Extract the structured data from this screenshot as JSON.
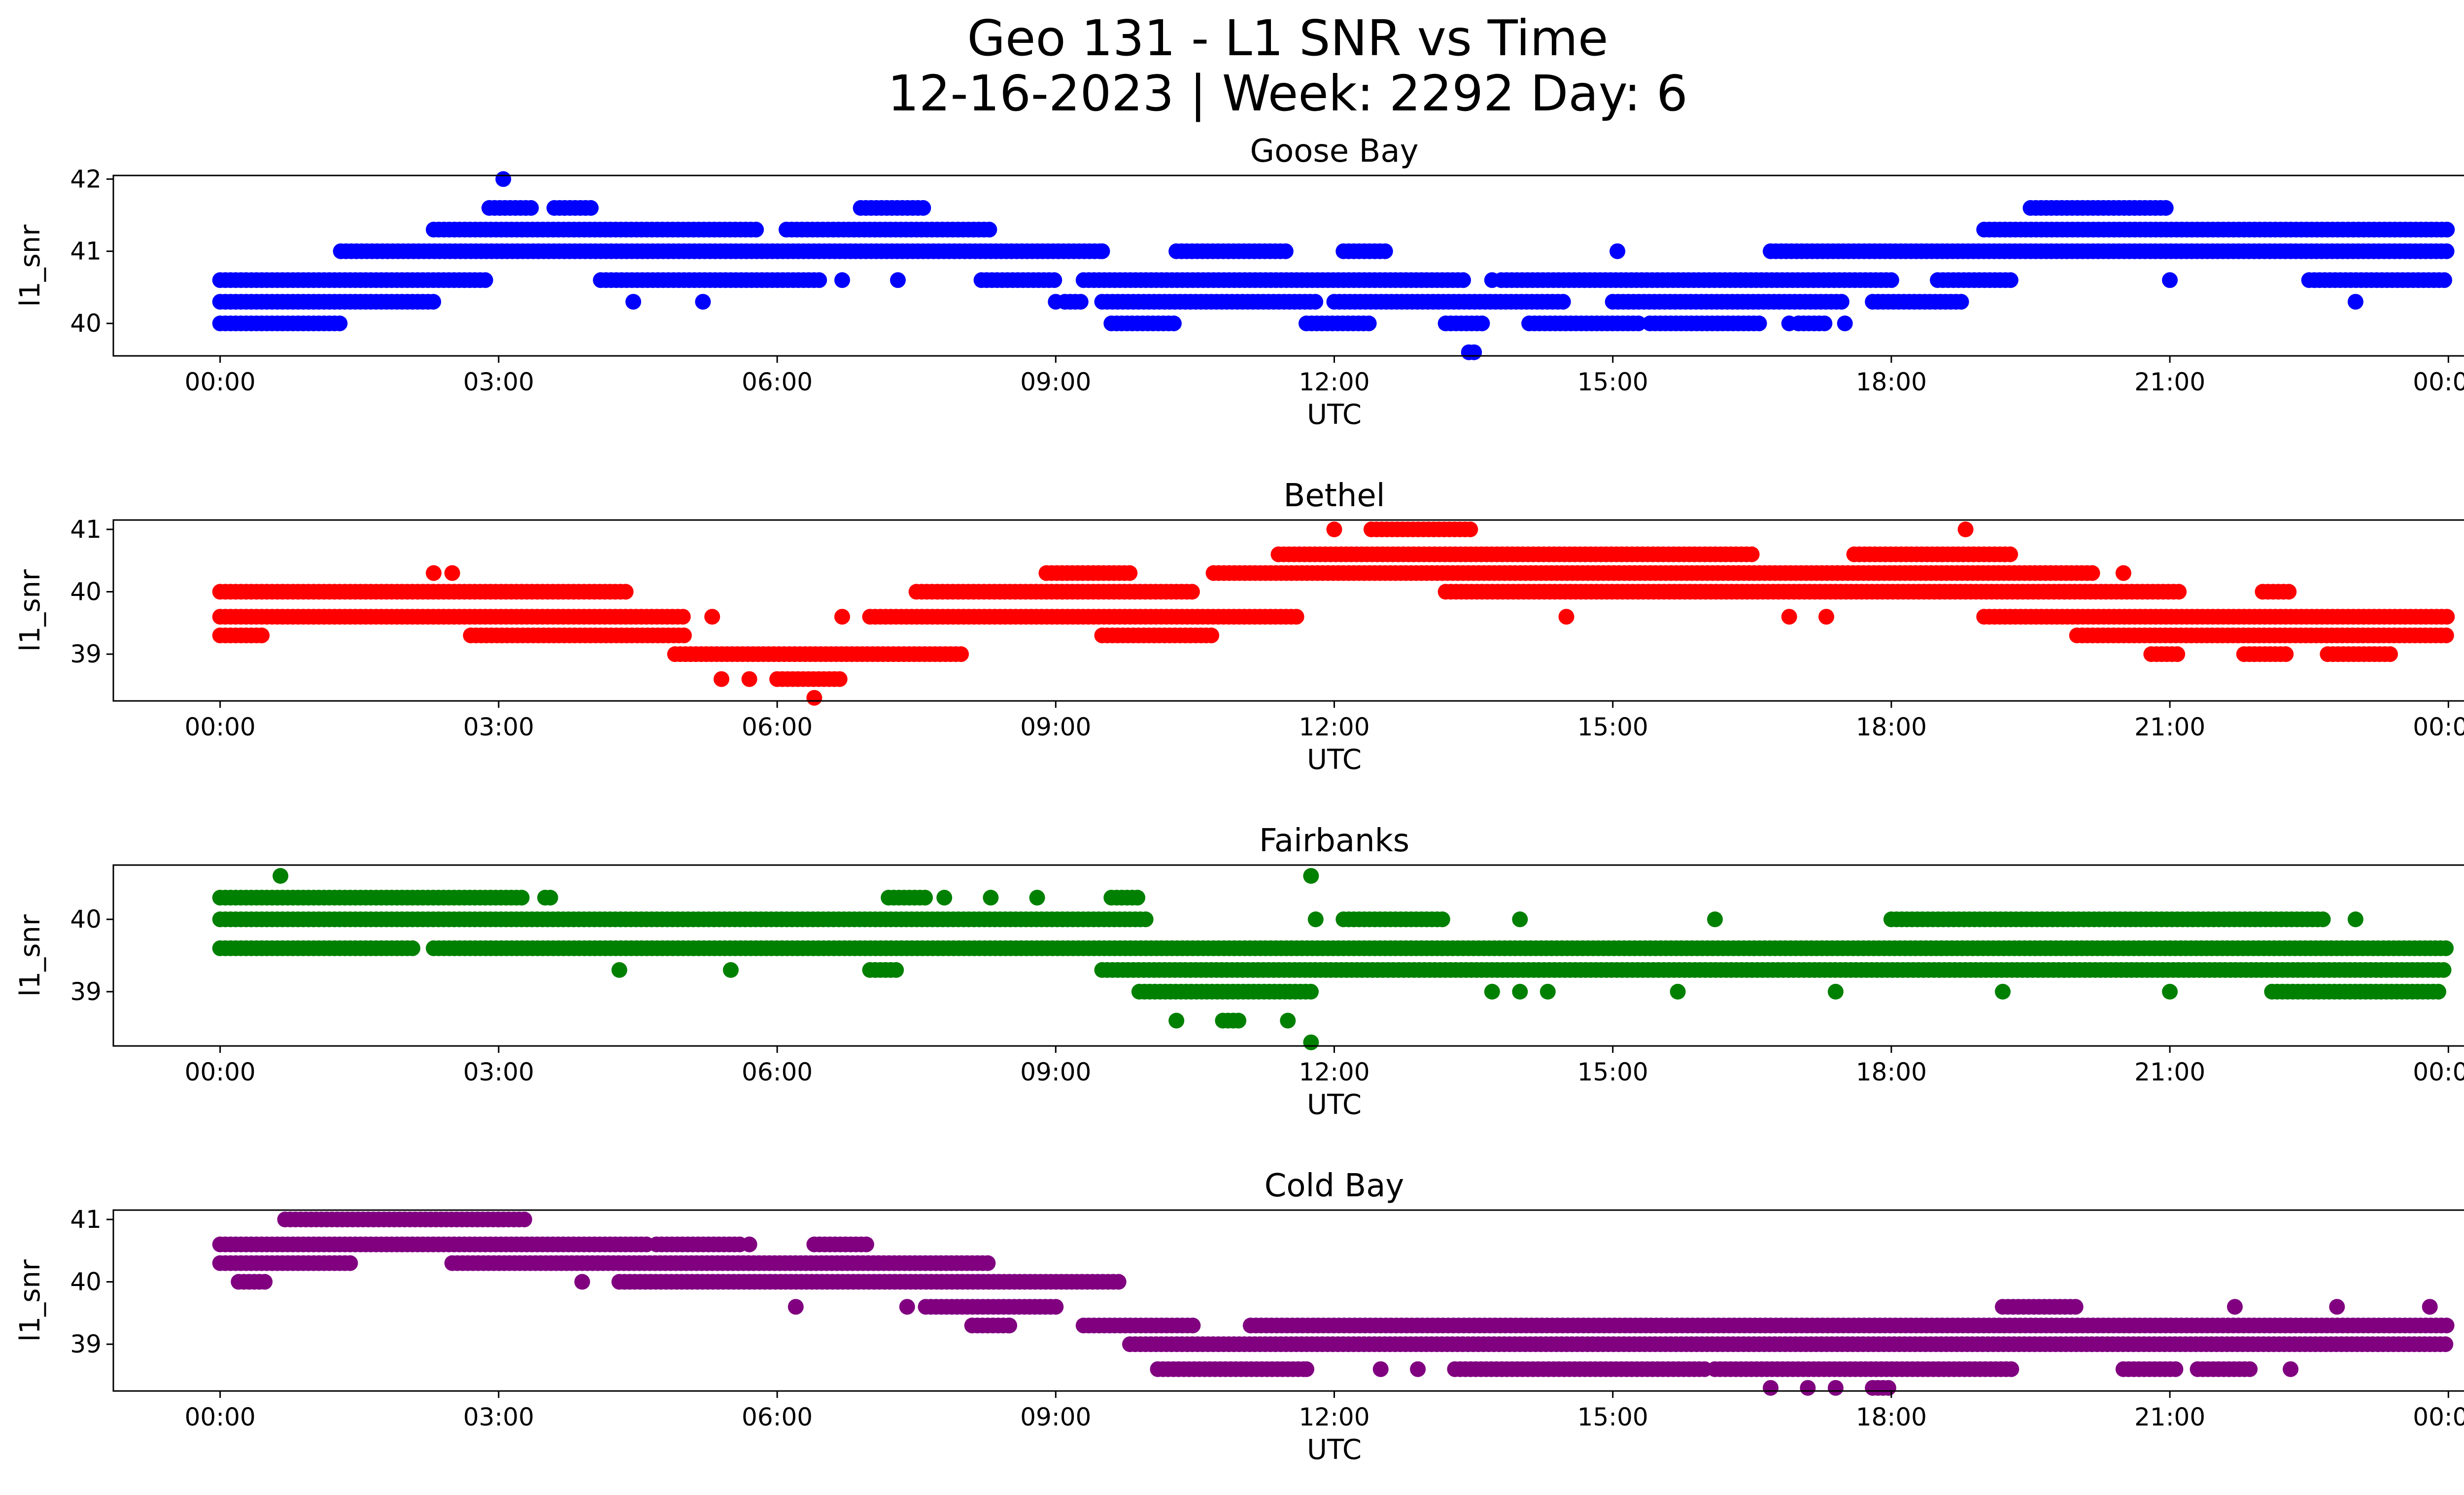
{
  "figure": {
    "title_line1": "Geo 131 - L1 SNR vs Time",
    "title_line2": "12-16-2023 | Week: 2292 Day: 6"
  },
  "chart_data": [
    {
      "type": "scatter",
      "title": "Goose Bay",
      "xlabel": "UTC",
      "ylabel": "l1_snr",
      "color": "#0000ff",
      "x_ticks": [
        "00:00",
        "03:00",
        "06:00",
        "09:00",
        "12:00",
        "15:00",
        "18:00",
        "21:00",
        "00:00"
      ],
      "xlim_hours": [
        -1.15,
        25.15
      ],
      "yticks": [
        40,
        41,
        42
      ],
      "ylim": [
        39.55,
        42.05
      ],
      "levels": [
        {
          "y": 40.0,
          "ranges": [
            [
              0.0,
              1.3
            ],
            [
              9.6,
              10.3
            ],
            [
              11.7,
              12.4
            ],
            [
              13.2,
              13.6
            ],
            [
              14.1,
              15.3
            ],
            [
              15.4,
              16.6
            ],
            [
              17.0,
              17.3
            ]
          ]
        },
        {
          "y": 40.3,
          "ranges": [
            [
              0.0,
              2.3
            ],
            [
              9.1,
              9.3
            ],
            [
              9.5,
              11.8
            ],
            [
              12.0,
              14.5
            ],
            [
              15.0,
              17.5
            ],
            [
              17.8,
              18.8
            ]
          ]
        },
        {
          "y": 40.6,
          "ranges": [
            [
              0.0,
              2.9
            ],
            [
              4.1,
              6.5
            ],
            [
              8.2,
              9.0
            ],
            [
              9.3,
              13.4
            ],
            [
              13.8,
              18.0
            ],
            [
              18.5,
              19.3
            ],
            [
              22.5,
              24.0
            ]
          ]
        },
        {
          "y": 41.0,
          "ranges": [
            [
              1.3,
              9.5
            ],
            [
              10.3,
              11.5
            ],
            [
              12.1,
              12.6
            ],
            [
              16.7,
              24.0
            ]
          ]
        },
        {
          "y": 41.3,
          "ranges": [
            [
              2.3,
              5.8
            ],
            [
              6.1,
              8.3
            ],
            [
              19.0,
              24.0
            ]
          ]
        },
        {
          "y": 41.6,
          "ranges": [
            [
              2.9,
              3.4
            ],
            [
              3.6,
              4.0
            ],
            [
              6.9,
              7.6
            ],
            [
              19.5,
              21.0
            ]
          ]
        },
        {
          "y": 42.0,
          "ranges": [
            [
              3.05,
              3.1
            ]
          ]
        },
        {
          "y": 39.6,
          "ranges": [
            [
              13.45,
              13.55
            ]
          ]
        }
      ],
      "singles": [
        [
          4.45,
          40.3
        ],
        [
          5.2,
          40.3
        ],
        [
          9.0,
          40.3
        ],
        [
          6.7,
          40.6
        ],
        [
          7.3,
          40.6
        ],
        [
          13.7,
          40.6
        ],
        [
          15.05,
          41.0
        ],
        [
          16.9,
          40.0
        ],
        [
          17.5,
          40.0
        ],
        [
          9.5,
          41.0
        ],
        [
          21.0,
          40.6
        ],
        [
          23.0,
          40.3
        ]
      ]
    },
    {
      "type": "scatter",
      "title": "Bethel",
      "xlabel": "UTC",
      "ylabel": "l1_snr",
      "color": "#ff0000",
      "x_ticks": [
        "00:00",
        "03:00",
        "06:00",
        "09:00",
        "12:00",
        "15:00",
        "18:00",
        "21:00",
        "00:00"
      ],
      "xlim_hours": [
        -1.15,
        25.15
      ],
      "yticks": [
        39,
        40,
        41
      ],
      "ylim": [
        38.25,
        41.15
      ],
      "levels": [
        {
          "y": 39.3,
          "ranges": [
            [
              0.0,
              0.5
            ],
            [
              2.7,
              5.0
            ],
            [
              9.5,
              10.7
            ],
            [
              20.0,
              24.0
            ]
          ]
        },
        {
          "y": 39.6,
          "ranges": [
            [
              0.0,
              5.0
            ],
            [
              7.0,
              11.6
            ],
            [
              19.0,
              24.0
            ]
          ]
        },
        {
          "y": 40.0,
          "ranges": [
            [
              0.0,
              4.4
            ],
            [
              7.5,
              10.5
            ],
            [
              13.2,
              21.1
            ],
            [
              22.0,
              22.3
            ]
          ]
        },
        {
          "y": 39.0,
          "ranges": [
            [
              4.9,
              8.0
            ],
            [
              20.8,
              21.1
            ],
            [
              21.8,
              22.3
            ],
            [
              22.7,
              23.4
            ]
          ]
        },
        {
          "y": 38.6,
          "ranges": [
            [
              6.0,
              6.7
            ]
          ]
        },
        {
          "y": 40.3,
          "ranges": [
            [
              8.9,
              9.8
            ],
            [
              10.7,
              20.2
            ]
          ]
        },
        {
          "y": 40.6,
          "ranges": [
            [
              11.4,
              16.5
            ],
            [
              17.6,
              19.3
            ]
          ]
        },
        {
          "y": 41.0,
          "ranges": [
            [
              12.4,
              13.5
            ]
          ]
        }
      ],
      "singles": [
        [
          2.3,
          40.3
        ],
        [
          2.5,
          40.3
        ],
        [
          5.4,
          38.6
        ],
        [
          5.7,
          38.6
        ],
        [
          6.4,
          38.3
        ],
        [
          6.7,
          39.6
        ],
        [
          5.3,
          39.6
        ],
        [
          12.0,
          41.0
        ],
        [
          14.5,
          39.6
        ],
        [
          18.8,
          41.0
        ],
        [
          20.5,
          40.3
        ],
        [
          16.9,
          39.6
        ],
        [
          17.3,
          39.6
        ]
      ]
    },
    {
      "type": "scatter",
      "title": "Fairbanks",
      "xlabel": "UTC",
      "ylabel": "l1_snr",
      "color": "#008000",
      "x_ticks": [
        "00:00",
        "03:00",
        "06:00",
        "09:00",
        "12:00",
        "15:00",
        "18:00",
        "21:00",
        "00:00"
      ],
      "xlim_hours": [
        -1.15,
        25.15
      ],
      "yticks": [
        39,
        40
      ],
      "ylim": [
        38.25,
        40.75
      ],
      "levels": [
        {
          "y": 39.6,
          "ranges": [
            [
              0.0,
              2.1
            ],
            [
              2.3,
              24.0
            ]
          ]
        },
        {
          "y": 40.0,
          "ranges": [
            [
              0.0,
              10.0
            ],
            [
              12.1,
              13.2
            ],
            [
              18.0,
              22.7
            ]
          ]
        },
        {
          "y": 40.3,
          "ranges": [
            [
              0.0,
              3.3
            ],
            [
              3.5,
              3.6
            ],
            [
              7.2,
              7.6
            ],
            [
              9.6,
              9.9
            ]
          ]
        },
        {
          "y": 39.3,
          "ranges": [
            [
              7.0,
              7.3
            ],
            [
              9.5,
              24.0
            ]
          ]
        },
        {
          "y": 39.0,
          "ranges": [
            [
              9.9,
              11.8
            ],
            [
              22.1,
              23.9
            ]
          ]
        },
        {
          "y": 38.6,
          "ranges": [
            [
              10.8,
              11.0
            ]
          ]
        }
      ],
      "singles": [
        [
          0.65,
          40.6
        ],
        [
          11.75,
          40.6
        ],
        [
          11.75,
          38.3
        ],
        [
          10.3,
          38.6
        ],
        [
          11.5,
          38.6
        ],
        [
          4.3,
          39.3
        ],
        [
          5.5,
          39.3
        ],
        [
          7.8,
          40.3
        ],
        [
          8.3,
          40.3
        ],
        [
          8.8,
          40.3
        ],
        [
          13.7,
          39.0
        ],
        [
          14.0,
          39.0
        ],
        [
          14.3,
          39.0
        ],
        [
          15.7,
          39.0
        ],
        [
          17.4,
          39.0
        ],
        [
          19.2,
          39.0
        ],
        [
          21.0,
          39.0
        ],
        [
          11.8,
          40.0
        ],
        [
          14.0,
          40.0
        ],
        [
          16.1,
          40.0
        ],
        [
          23.0,
          40.0
        ]
      ]
    },
    {
      "type": "scatter",
      "title": "Cold Bay",
      "xlabel": "UTC",
      "ylabel": "l1_snr",
      "color": "#800080",
      "x_ticks": [
        "00:00",
        "03:00",
        "06:00",
        "09:00",
        "12:00",
        "15:00",
        "18:00",
        "21:00",
        "00:00"
      ],
      "xlim_hours": [
        -1.15,
        25.15
      ],
      "yticks": [
        39,
        40,
        41
      ],
      "ylim": [
        38.25,
        41.15
      ],
      "levels": [
        {
          "y": 40.6,
          "ranges": [
            [
              0.0,
              4.6
            ],
            [
              4.7,
              5.6
            ],
            [
              6.4,
              7.0
            ]
          ]
        },
        {
          "y": 40.3,
          "ranges": [
            [
              0.0,
              1.4
            ],
            [
              2.5,
              8.3
            ]
          ]
        },
        {
          "y": 40.0,
          "ranges": [
            [
              0.2,
              0.5
            ],
            [
              4.3,
              9.7
            ]
          ]
        },
        {
          "y": 41.0,
          "ranges": [
            [
              0.7,
              3.3
            ]
          ]
        },
        {
          "y": 39.6,
          "ranges": [
            [
              7.6,
              9.0
            ],
            [
              19.2,
              20.0
            ]
          ]
        },
        {
          "y": 39.3,
          "ranges": [
            [
              8.1,
              8.5
            ],
            [
              9.3,
              10.5
            ],
            [
              11.1,
              24.0
            ]
          ]
        },
        {
          "y": 39.0,
          "ranges": [
            [
              9.8,
              24.0
            ]
          ]
        },
        {
          "y": 38.6,
          "ranges": [
            [
              10.1,
              11.7
            ],
            [
              13.3,
              16.0
            ],
            [
              16.1,
              19.3
            ],
            [
              20.5,
              21.1
            ],
            [
              21.3,
              21.9
            ]
          ]
        },
        {
          "y": 38.3,
          "ranges": [
            [
              17.8,
              18.0
            ]
          ]
        }
      ],
      "singles": [
        [
          3.9,
          40.0
        ],
        [
          5.7,
          40.6
        ],
        [
          6.2,
          39.6
        ],
        [
          7.4,
          39.6
        ],
        [
          8.5,
          39.3
        ],
        [
          16.7,
          38.3
        ],
        [
          17.1,
          38.3
        ],
        [
          17.4,
          38.3
        ],
        [
          11.7,
          38.6
        ],
        [
          12.5,
          38.6
        ],
        [
          12.9,
          38.6
        ],
        [
          22.3,
          38.6
        ],
        [
          21.7,
          39.6
        ],
        [
          22.8,
          39.6
        ],
        [
          23.8,
          39.6
        ]
      ]
    }
  ]
}
